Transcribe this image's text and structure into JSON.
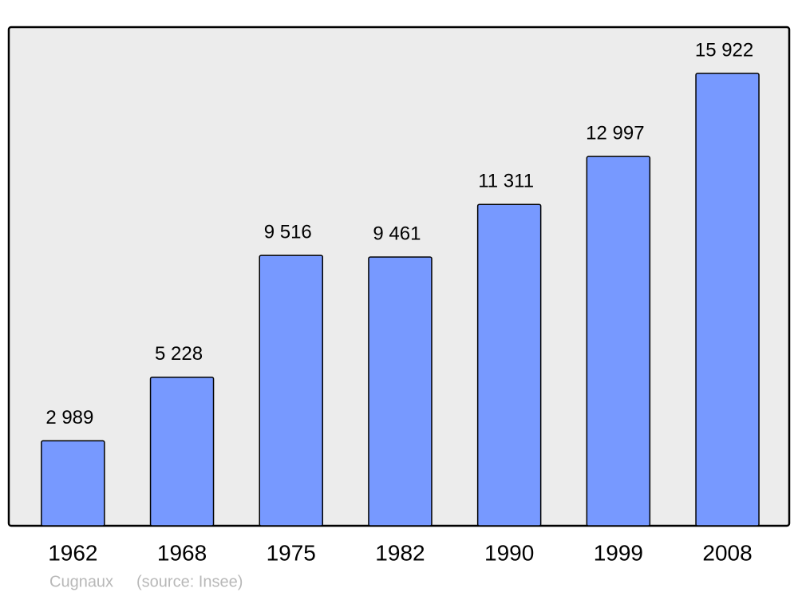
{
  "chart_data": {
    "type": "bar",
    "categories": [
      "1962",
      "1968",
      "1975",
      "1982",
      "1990",
      "1999",
      "2008"
    ],
    "values": [
      2989,
      5228,
      9516,
      9461,
      11311,
      12997,
      15922
    ],
    "value_labels": [
      "2 989",
      "5 228",
      "9 516",
      "9 461",
      "11 311",
      "12 997",
      "15 922"
    ],
    "color": "#7799ff",
    "footer": {
      "place": "Cugnaux",
      "source": "(source: Insee)"
    }
  }
}
